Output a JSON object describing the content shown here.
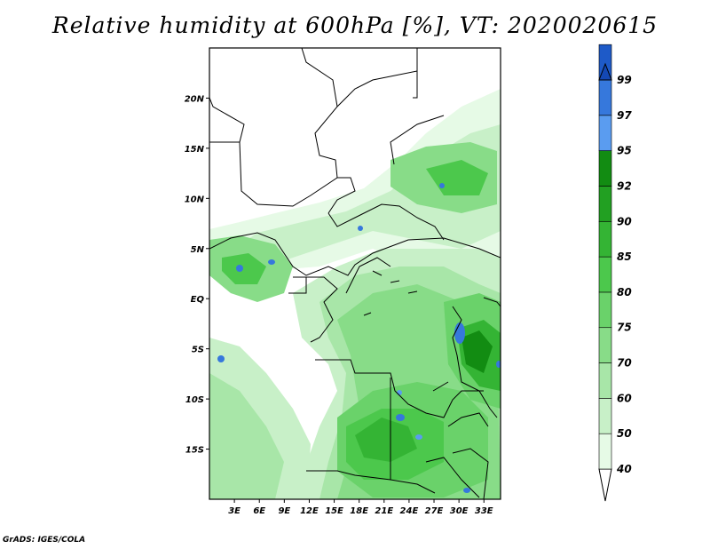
{
  "title": "Relative humidity at 600hPa [%], VT: 2020020615",
  "credit": "GrADS: IGES/COLA",
  "map": {
    "lat_range": [
      -20,
      25
    ],
    "lon_range": [
      0,
      35
    ],
    "lat_labels": [
      {
        "lat": 20,
        "text": "20N"
      },
      {
        "lat": 15,
        "text": "15N"
      },
      {
        "lat": 10,
        "text": "10N"
      },
      {
        "lat": 5,
        "text": "5N"
      },
      {
        "lat": 0,
        "text": "EQ"
      },
      {
        "lat": -5,
        "text": "5S"
      },
      {
        "lat": -10,
        "text": "10S"
      },
      {
        "lat": -15,
        "text": "15S"
      }
    ],
    "lon_labels": [
      {
        "lon": 3,
        "text": "3E"
      },
      {
        "lon": 6,
        "text": "6E"
      },
      {
        "lon": 9,
        "text": "9E"
      },
      {
        "lon": 12,
        "text": "12E"
      },
      {
        "lon": 15,
        "text": "15E"
      },
      {
        "lon": 18,
        "text": "18E"
      },
      {
        "lon": 21,
        "text": "21E"
      },
      {
        "lon": 24,
        "text": "24E"
      },
      {
        "lon": 27,
        "text": "27E"
      },
      {
        "lon": 30,
        "text": "30E"
      },
      {
        "lon": 33,
        "text": "33E"
      }
    ]
  },
  "colorbar": {
    "levels": [
      "40",
      "50",
      "60",
      "70",
      "75",
      "80",
      "85",
      "90",
      "92",
      "95",
      "97",
      "99"
    ],
    "colors": [
      "#e6fae6",
      "#c8f0c8",
      "#a8e6a8",
      "#88dc88",
      "#6ad26a",
      "#4cc84c",
      "#34b434",
      "#22a022",
      "#128c12",
      "#5a9cf0",
      "#3678dc",
      "#1e5ac8",
      "#1448b4"
    ]
  }
}
